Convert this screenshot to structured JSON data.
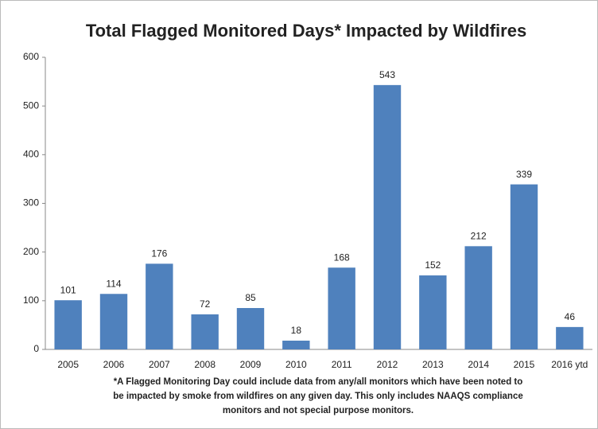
{
  "chart_data": {
    "type": "bar",
    "title": "Total Flagged Monitored Days* Impacted by Wildfires",
    "categories": [
      "2005",
      "2006",
      "2007",
      "2008",
      "2009",
      "2010",
      "2011",
      "2012",
      "2013",
      "2014",
      "2015",
      "2016 ytd"
    ],
    "values": [
      101,
      114,
      176,
      72,
      85,
      18,
      168,
      543,
      152,
      212,
      339,
      46
    ],
    "color": "#4f81bd",
    "ylim": [
      0,
      600
    ],
    "yticks": [
      0,
      100,
      200,
      300,
      400,
      500,
      600
    ],
    "grid": false,
    "footnote": [
      "*A Flagged Monitoring Day could include data from any/all monitors which have been noted to",
      "be impacted by smoke from wildfires on any given day. This only includes NAAQS compliance",
      "monitors and not special purpose monitors."
    ]
  }
}
